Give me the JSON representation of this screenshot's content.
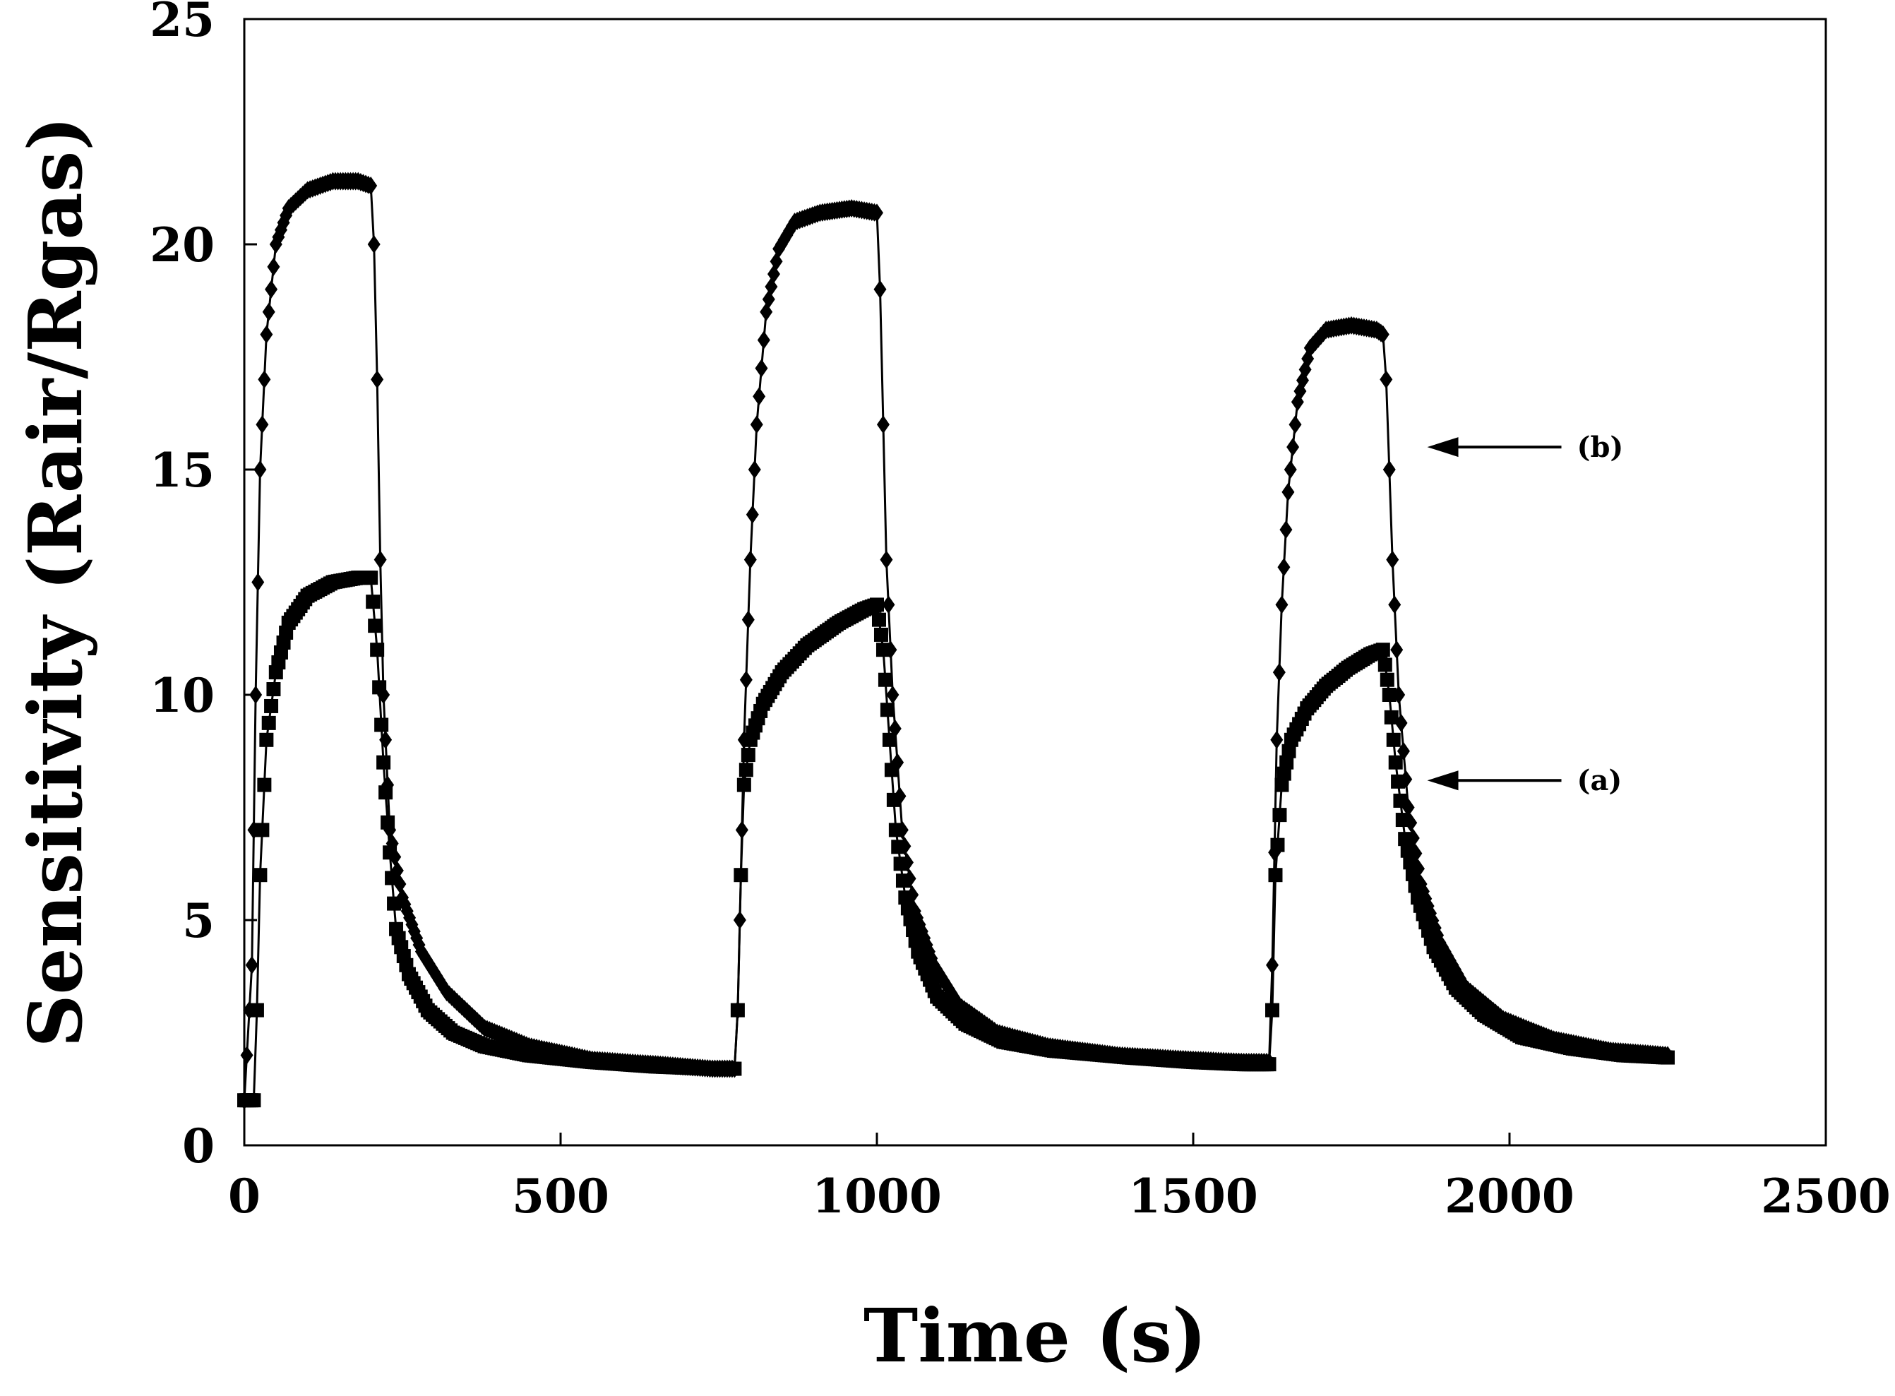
{
  "chart_data": {
    "type": "scatter",
    "title": "",
    "xlabel": "Time (s)",
    "ylabel": "Sensitivity (Rair/Rgas)",
    "xlim": [
      0,
      2500
    ],
    "ylim": [
      0,
      25
    ],
    "xticks": [
      0,
      500,
      1000,
      1500,
      2000,
      2500
    ],
    "yticks": [
      0,
      5,
      10,
      15,
      20,
      25
    ],
    "grid": false,
    "legend": "none",
    "series": [
      {
        "name": "(a)",
        "marker": "square",
        "points": [
          [
            0,
            1.0
          ],
          [
            15,
            1.0
          ],
          [
            20,
            3.0
          ],
          [
            25,
            6.0
          ],
          [
            35,
            9.0
          ],
          [
            50,
            10.5
          ],
          [
            70,
            11.6
          ],
          [
            100,
            12.2
          ],
          [
            140,
            12.5
          ],
          [
            180,
            12.6
          ],
          [
            200,
            12.6
          ],
          [
            210,
            11.0
          ],
          [
            220,
            8.5
          ],
          [
            230,
            6.5
          ],
          [
            240,
            4.8
          ],
          [
            260,
            3.8
          ],
          [
            290,
            3.0
          ],
          [
            330,
            2.5
          ],
          [
            380,
            2.2
          ],
          [
            450,
            2.0
          ],
          [
            550,
            1.85
          ],
          [
            650,
            1.75
          ],
          [
            740,
            1.7
          ],
          [
            775,
            1.7
          ],
          [
            780,
            3.0
          ],
          [
            785,
            6.0
          ],
          [
            790,
            8.0
          ],
          [
            800,
            9.0
          ],
          [
            820,
            9.8
          ],
          [
            850,
            10.5
          ],
          [
            890,
            11.1
          ],
          [
            940,
            11.6
          ],
          [
            980,
            11.9
          ],
          [
            1000,
            12.0
          ],
          [
            1010,
            11.0
          ],
          [
            1020,
            9.0
          ],
          [
            1030,
            7.0
          ],
          [
            1045,
            5.5
          ],
          [
            1065,
            4.3
          ],
          [
            1095,
            3.3
          ],
          [
            1140,
            2.7
          ],
          [
            1200,
            2.3
          ],
          [
            1280,
            2.1
          ],
          [
            1400,
            1.95
          ],
          [
            1500,
            1.85
          ],
          [
            1580,
            1.8
          ],
          [
            1620,
            1.8
          ],
          [
            1625,
            3.0
          ],
          [
            1630,
            6.0
          ],
          [
            1640,
            8.0
          ],
          [
            1655,
            9.0
          ],
          [
            1680,
            9.7
          ],
          [
            1710,
            10.2
          ],
          [
            1745,
            10.6
          ],
          [
            1780,
            10.9
          ],
          [
            1800,
            11.0
          ],
          [
            1810,
            10.0
          ],
          [
            1820,
            8.5
          ],
          [
            1835,
            6.8
          ],
          [
            1855,
            5.5
          ],
          [
            1880,
            4.4
          ],
          [
            1915,
            3.5
          ],
          [
            1960,
            2.9
          ],
          [
            2020,
            2.4
          ],
          [
            2100,
            2.15
          ],
          [
            2180,
            2.0
          ],
          [
            2250,
            1.95
          ]
        ]
      },
      {
        "name": "(b)",
        "marker": "diamond",
        "points": [
          [
            0,
            1.0
          ],
          [
            12,
            4.0
          ],
          [
            18,
            10.0
          ],
          [
            25,
            15.0
          ],
          [
            35,
            18.0
          ],
          [
            50,
            20.0
          ],
          [
            70,
            20.8
          ],
          [
            100,
            21.2
          ],
          [
            140,
            21.4
          ],
          [
            180,
            21.4
          ],
          [
            200,
            21.3
          ],
          [
            205,
            20.0
          ],
          [
            210,
            17.0
          ],
          [
            215,
            13.0
          ],
          [
            220,
            10.0
          ],
          [
            230,
            7.0
          ],
          [
            250,
            5.5
          ],
          [
            280,
            4.3
          ],
          [
            320,
            3.4
          ],
          [
            380,
            2.6
          ],
          [
            450,
            2.2
          ],
          [
            550,
            1.9
          ],
          [
            650,
            1.8
          ],
          [
            740,
            1.7
          ],
          [
            775,
            1.7
          ],
          [
            780,
            3.0
          ],
          [
            790,
            9.0
          ],
          [
            800,
            13.0
          ],
          [
            810,
            16.0
          ],
          [
            825,
            18.5
          ],
          [
            845,
            19.9
          ],
          [
            870,
            20.5
          ],
          [
            910,
            20.7
          ],
          [
            960,
            20.8
          ],
          [
            1000,
            20.7
          ],
          [
            1005,
            19.0
          ],
          [
            1010,
            16.0
          ],
          [
            1015,
            13.0
          ],
          [
            1025,
            10.0
          ],
          [
            1040,
            7.0
          ],
          [
            1060,
            5.2
          ],
          [
            1090,
            4.0
          ],
          [
            1130,
            3.1
          ],
          [
            1190,
            2.5
          ],
          [
            1270,
            2.2
          ],
          [
            1380,
            2.0
          ],
          [
            1500,
            1.9
          ],
          [
            1580,
            1.85
          ],
          [
            1620,
            1.85
          ],
          [
            1625,
            4.0
          ],
          [
            1632,
            9.0
          ],
          [
            1640,
            12.0
          ],
          [
            1650,
            14.5
          ],
          [
            1665,
            16.5
          ],
          [
            1685,
            17.7
          ],
          [
            1710,
            18.1
          ],
          [
            1750,
            18.2
          ],
          [
            1790,
            18.1
          ],
          [
            1800,
            18.0
          ],
          [
            1805,
            17.0
          ],
          [
            1810,
            15.0
          ],
          [
            1815,
            13.0
          ],
          [
            1825,
            10.0
          ],
          [
            1840,
            7.5
          ],
          [
            1860,
            5.8
          ],
          [
            1890,
            4.5
          ],
          [
            1930,
            3.5
          ],
          [
            1990,
            2.8
          ],
          [
            2070,
            2.35
          ],
          [
            2160,
            2.1
          ],
          [
            2250,
            2.0
          ]
        ]
      }
    ],
    "annotations": [
      {
        "text": "(b)",
        "points_to_series": "(b)",
        "arrow_tip": [
          1870,
          15.5
        ]
      },
      {
        "text": "(a)",
        "points_to_series": "(a)",
        "arrow_tip": [
          1870,
          8.1
        ]
      }
    ]
  }
}
